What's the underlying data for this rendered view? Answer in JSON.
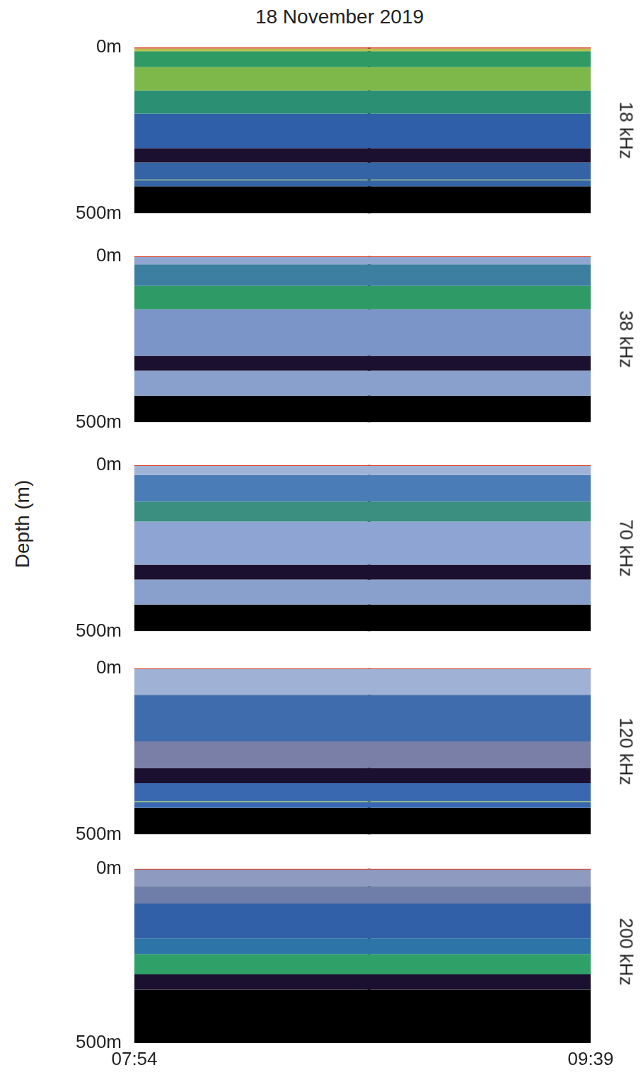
{
  "chart_data": {
    "type": "echogram",
    "title": "18 November 2019",
    "y_label": "Depth (m)",
    "xlim": [
      0,
      105
    ],
    "xticks": [
      {
        "value": 0,
        "label": "07:54"
      },
      {
        "value": 105,
        "label": "09:39"
      }
    ],
    "ylim": [
      0,
      500
    ],
    "yticks": [
      {
        "value": 0,
        "label": "0m"
      },
      {
        "value": 500,
        "label": "500m"
      }
    ],
    "grid": false,
    "panels": [
      {
        "name": "18 kHz",
        "tick_labels": "y",
        "layers": [
          {
            "from": 0,
            "to": 4,
            "color": "#d9442a"
          },
          {
            "from": 4,
            "to": 12,
            "color": "#b9c04a"
          },
          {
            "from": 12,
            "to": 60,
            "color": "#2f9a63"
          },
          {
            "from": 60,
            "to": 130,
            "color": "#7fb84a"
          },
          {
            "from": 130,
            "to": 200,
            "color": "#2a8f73"
          },
          {
            "from": 200,
            "to": 304,
            "color": "#2f5fa8"
          },
          {
            "from": 304,
            "to": 347,
            "color": "#1c1030"
          },
          {
            "from": 347,
            "to": 398,
            "color": "#3564a6"
          },
          {
            "from": 398,
            "to": 400,
            "color": "#5aa04a"
          },
          {
            "from": 400,
            "to": 419,
            "color": "#3564a6"
          },
          {
            "from": 419,
            "to": 500,
            "color": "#000000"
          }
        ],
        "vline": {
          "x": 54,
          "from": 0,
          "to": 500,
          "color": "#0a0510"
        }
      },
      {
        "name": "38 kHz",
        "tick_labels": "y",
        "layers": [
          {
            "from": 0,
            "to": 3,
            "color": "#d9442a"
          },
          {
            "from": 3,
            "to": 25,
            "color": "#8fa7d0"
          },
          {
            "from": 25,
            "to": 90,
            "color": "#3d7fa0"
          },
          {
            "from": 90,
            "to": 160,
            "color": "#2e9a66"
          },
          {
            "from": 160,
            "to": 300,
            "color": "#7b95c8"
          },
          {
            "from": 300,
            "to": 345,
            "color": "#1c1030"
          },
          {
            "from": 345,
            "to": 420,
            "color": "#8aa0cc"
          },
          {
            "from": 420,
            "to": 500,
            "color": "#000000"
          }
        ],
        "vline": {
          "x": 54,
          "from": 0,
          "to": 500,
          "color": "#0a0510"
        }
      },
      {
        "name": "70 kHz",
        "tick_labels": "y",
        "layers": [
          {
            "from": 0,
            "to": 3,
            "color": "#d9442a"
          },
          {
            "from": 3,
            "to": 30,
            "color": "#9fb3d8"
          },
          {
            "from": 30,
            "to": 110,
            "color": "#4a7cb8"
          },
          {
            "from": 110,
            "to": 170,
            "color": "#3a8f80"
          },
          {
            "from": 170,
            "to": 300,
            "color": "#8ea4d2"
          },
          {
            "from": 300,
            "to": 345,
            "color": "#1c1030"
          },
          {
            "from": 345,
            "to": 420,
            "color": "#8aa0cc"
          },
          {
            "from": 420,
            "to": 500,
            "color": "#000000"
          }
        ],
        "vline": {
          "x": 54,
          "from": 0,
          "to": 500,
          "color": "#0a0510"
        }
      },
      {
        "name": "120 kHz",
        "tick_labels": "y",
        "layers": [
          {
            "from": 0,
            "to": 3,
            "color": "#d9442a"
          },
          {
            "from": 3,
            "to": 80,
            "color": "#9fb1d4"
          },
          {
            "from": 80,
            "to": 220,
            "color": "#3f6cad"
          },
          {
            "from": 220,
            "to": 300,
            "color": "#7a7fa8"
          },
          {
            "from": 300,
            "to": 346,
            "color": "#1c1030"
          },
          {
            "from": 346,
            "to": 400,
            "color": "#3a68b0"
          },
          {
            "from": 400,
            "to": 403,
            "color": "#9ccf3c"
          },
          {
            "from": 403,
            "to": 420,
            "color": "#3a68b0"
          },
          {
            "from": 420,
            "to": 500,
            "color": "#000000"
          }
        ],
        "vline": {
          "x": 54,
          "from": 0,
          "to": 500,
          "color": "#0a0510"
        }
      },
      {
        "name": "200 kHz",
        "tick_labels": true,
        "layers": [
          {
            "from": 0,
            "to": 3,
            "color": "#d9442a"
          },
          {
            "from": 3,
            "to": 50,
            "color": "#8f9ac0"
          },
          {
            "from": 50,
            "to": 100,
            "color": "#6e7ea8"
          },
          {
            "from": 100,
            "to": 200,
            "color": "#3160a8"
          },
          {
            "from": 200,
            "to": 245,
            "color": "#2d74a8"
          },
          {
            "from": 245,
            "to": 303,
            "color": "#2fa068"
          },
          {
            "from": 303,
            "to": 347,
            "color": "#1c1030"
          },
          {
            "from": 347,
            "to": 500,
            "color": "#000000"
          }
        ],
        "vline": {
          "x": 54,
          "from": 0,
          "to": 423,
          "color": "#0a0510"
        }
      }
    ]
  }
}
